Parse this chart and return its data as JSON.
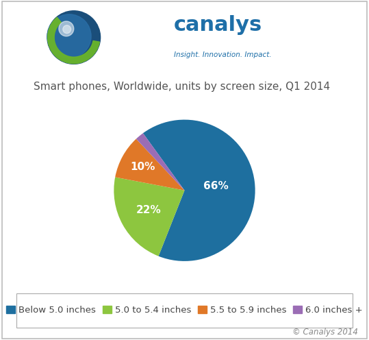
{
  "title": "Smart phones, Worldwide, units by screen size, Q1 2014",
  "slices": [
    66,
    22,
    10,
    2
  ],
  "colors": [
    "#1e6f9f",
    "#8dc63f",
    "#e07828",
    "#9b6db5"
  ],
  "legend_labels": [
    "Below 5.0 inches",
    "5.0 to 5.4 inches",
    "5.5 to 5.9 inches",
    "6.0 inches +"
  ],
  "label_texts": [
    "66%",
    "22%",
    "10%"
  ],
  "copyright": "© Canalys 2014",
  "background_color": "#ffffff",
  "title_fontsize": 11,
  "label_fontsize": 11,
  "legend_fontsize": 9.5,
  "startangle": 126,
  "counterclock": false
}
